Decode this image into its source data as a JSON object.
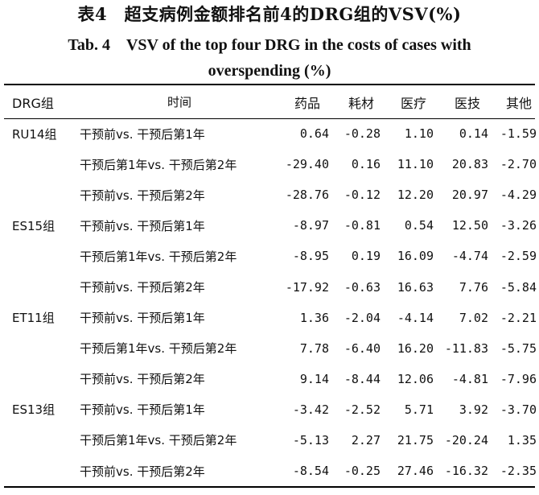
{
  "title_cn": "表4　超支病例金额排名前4的DRG组的VSV(%)",
  "title_en_line1": "Tab. 4　VSV of the top four DRG in the costs of cases with",
  "title_en_line2": "overspending (%)",
  "headers": [
    "DRG组",
    "时间",
    "药品",
    "耗材",
    "医疗",
    "医技",
    "其他"
  ],
  "groups": [
    {
      "name": "RU14组",
      "rows": [
        {
          "period": "干预前vs. 干预后第1年",
          "values": [
            "0.64",
            "-0.28",
            "1.10",
            "0.14",
            "-1.59"
          ]
        },
        {
          "period": "干预后第1年vs. 干预后第2年",
          "values": [
            "-29.40",
            "0.16",
            "11.10",
            "20.83",
            "-2.70"
          ]
        },
        {
          "period": "干预前vs. 干预后第2年",
          "values": [
            "-28.76",
            "-0.12",
            "12.20",
            "20.97",
            "-4.29"
          ]
        }
      ]
    },
    {
      "name": "ES15组",
      "rows": [
        {
          "period": "干预前vs. 干预后第1年",
          "values": [
            "-8.97",
            "-0.81",
            "0.54",
            "12.50",
            "-3.26"
          ]
        },
        {
          "period": "干预后第1年vs. 干预后第2年",
          "values": [
            "-8.95",
            "0.19",
            "16.09",
            "-4.74",
            "-2.59"
          ]
        },
        {
          "period": "干预前vs. 干预后第2年",
          "values": [
            "-17.92",
            "-0.63",
            "16.63",
            "7.76",
            "-5.84"
          ]
        }
      ]
    },
    {
      "name": "ET11组",
      "rows": [
        {
          "period": "干预前vs. 干预后第1年",
          "values": [
            "1.36",
            "-2.04",
            "-4.14",
            "7.02",
            "-2.21"
          ]
        },
        {
          "period": "干预后第1年vs. 干预后第2年",
          "values": [
            "7.78",
            "-6.40",
            "16.20",
            "-11.83",
            "-5.75"
          ]
        },
        {
          "period": "干预前vs. 干预后第2年",
          "values": [
            "9.14",
            "-8.44",
            "12.06",
            "-4.81",
            "-7.96"
          ]
        }
      ]
    },
    {
      "name": "ES13组",
      "rows": [
        {
          "period": "干预前vs. 干预后第1年",
          "values": [
            "-3.42",
            "-2.52",
            "5.71",
            "3.92",
            "-3.70"
          ]
        },
        {
          "period": "干预后第1年vs. 干预后第2年",
          "values": [
            "-5.13",
            "2.27",
            "21.75",
            "-20.24",
            "1.35"
          ]
        },
        {
          "period": "干预前vs. 干预后第2年",
          "values": [
            "-8.54",
            "-0.25",
            "27.46",
            "-16.32",
            "-2.35"
          ]
        }
      ]
    }
  ]
}
